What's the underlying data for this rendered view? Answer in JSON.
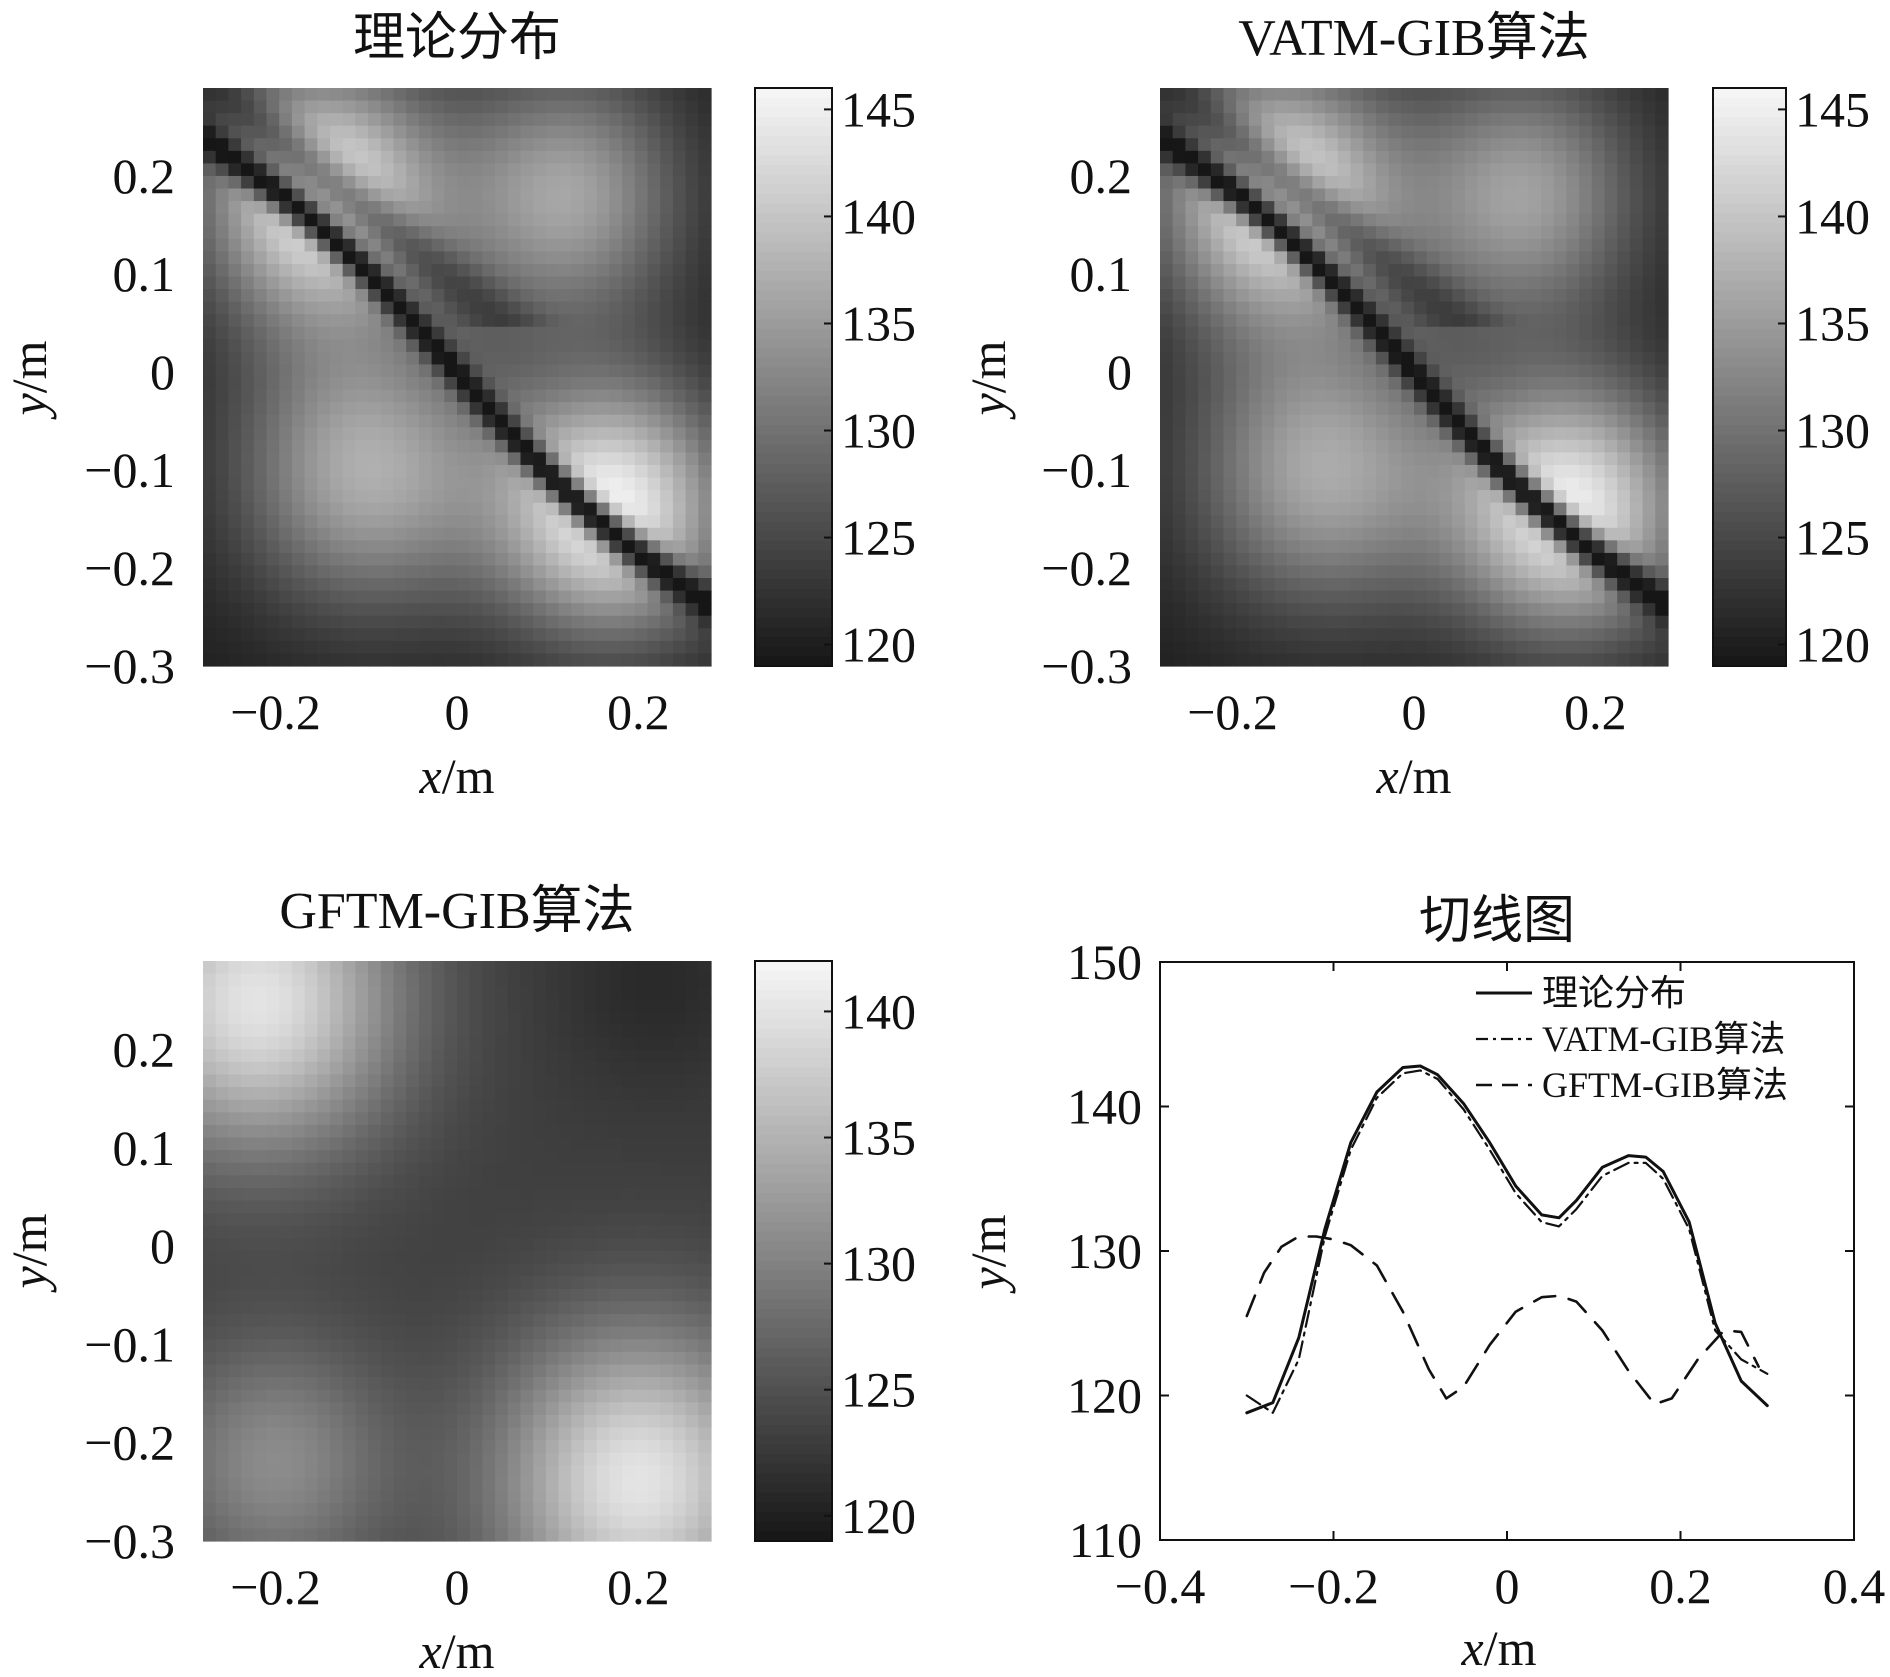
{
  "chart_data": [
    {
      "id": "heat_theory",
      "type": "heatmap",
      "title": "理论分布",
      "xlabel_var": "x",
      "xlabel_unit": "/m",
      "ylabel_var": "y",
      "ylabel_unit": "/m",
      "xlim": [
        -0.28,
        0.28
      ],
      "ylim": [
        -0.3,
        0.29
      ],
      "xticks": [
        -0.2,
        0,
        0.2
      ],
      "xtick_labels": [
        "−0.2",
        "0",
        "0.2"
      ],
      "yticks": [
        0.2,
        0.1,
        0,
        -0.1,
        -0.2,
        -0.3
      ],
      "ytick_labels": [
        "0.2",
        "0.1",
        "0",
        "−0.1",
        "−0.2",
        "−0.3"
      ],
      "colorbar": {
        "range": [
          119,
          146
        ],
        "ticks": [
          145,
          140,
          135,
          130,
          125,
          120
        ],
        "tick_labels": [
          "145",
          "140",
          "135",
          "130",
          "125",
          "120"
        ]
      },
      "field": {
        "peaks": [
          [
            -0.15,
            0.18,
            145.5,
            0.09
          ],
          [
            0.17,
            -0.14,
            145.5,
            0.09
          ],
          [
            0.12,
            0.18,
            136,
            0.09
          ],
          [
            -0.1,
            -0.1,
            137,
            0.1
          ]
        ],
        "nodal": 0.035,
        "base": 120
      }
    },
    {
      "id": "heat_vatm",
      "type": "heatmap",
      "title": "VATM-GIB算法",
      "xlabel_var": "x",
      "xlabel_unit": "/m",
      "ylabel_var": "y",
      "ylabel_unit": "/m",
      "xlim": [
        -0.28,
        0.28
      ],
      "ylim": [
        -0.3,
        0.29
      ],
      "xticks": [
        -0.2,
        0,
        0.2
      ],
      "xtick_labels": [
        "−0.2",
        "0",
        "0.2"
      ],
      "yticks": [
        0.2,
        0.1,
        0,
        -0.1,
        -0.2,
        -0.3
      ],
      "ytick_labels": [
        "0.2",
        "0.1",
        "0",
        "−0.1",
        "−0.2",
        "−0.3"
      ],
      "colorbar": {
        "range": [
          119,
          146
        ],
        "ticks": [
          145,
          140,
          135,
          130,
          125,
          120
        ],
        "tick_labels": [
          "145",
          "140",
          "135",
          "130",
          "125",
          "120"
        ]
      },
      "field": {
        "peaks": [
          [
            -0.15,
            0.18,
            145,
            0.09
          ],
          [
            0.17,
            -0.14,
            145,
            0.09
          ],
          [
            0.12,
            0.18,
            135.5,
            0.09
          ],
          [
            -0.1,
            -0.1,
            136.5,
            0.1
          ]
        ],
        "nodal": 0.035,
        "base": 120
      }
    },
    {
      "id": "heat_gftm",
      "type": "heatmap",
      "title": "GFTM-GIB算法",
      "xlabel_var": "x",
      "xlabel_unit": "/m",
      "ylabel_var": "y",
      "ylabel_unit": "/m",
      "xlim": [
        -0.28,
        0.28
      ],
      "ylim": [
        -0.3,
        0.29
      ],
      "xticks": [
        -0.2,
        0,
        0.2
      ],
      "xtick_labels": [
        "−0.2",
        "0",
        "0.2"
      ],
      "yticks": [
        0.2,
        0.1,
        0,
        -0.1,
        -0.2,
        -0.3
      ],
      "ytick_labels": [
        "0.2",
        "0.1",
        "0",
        "−0.1",
        "−0.2",
        "−0.3"
      ],
      "colorbar": {
        "range": [
          119,
          142
        ],
        "ticks": [
          140,
          135,
          130,
          125,
          120
        ],
        "tick_labels": [
          "140",
          "135",
          "130",
          "125",
          "120"
        ]
      },
      "field": {
        "peaks": [
          [
            -0.22,
            0.25,
            140,
            0.11
          ],
          [
            0.2,
            -0.24,
            140,
            0.11
          ],
          [
            -0.2,
            -0.22,
            131,
            0.09
          ],
          [
            0.22,
            0.27,
            121,
            0.08
          ]
        ],
        "base": 123,
        "mode": "smooth"
      }
    },
    {
      "id": "line_cut",
      "type": "line",
      "title": "切线图",
      "xlabel_var": "x",
      "xlabel_unit": "/m",
      "ylabel_var": "y",
      "ylabel_unit": "/m",
      "xlim": [
        -0.4,
        0.4
      ],
      "ylim": [
        110,
        150
      ],
      "xticks": [
        -0.4,
        -0.2,
        0,
        0.2,
        0.4
      ],
      "xtick_labels": [
        "−0.4",
        "−0.2",
        "0",
        "0.2",
        "0.4"
      ],
      "yticks": [
        150,
        140,
        130,
        120,
        110
      ],
      "ytick_labels": [
        "150",
        "140",
        "130",
        "120",
        "110"
      ],
      "legend_position": "top-right",
      "series": [
        {
          "name": "理论分布",
          "style": "solid",
          "x": [
            -0.3,
            -0.27,
            -0.24,
            -0.21,
            -0.18,
            -0.15,
            -0.12,
            -0.1,
            -0.08,
            -0.05,
            -0.02,
            0.01,
            0.04,
            0.06,
            0.08,
            0.11,
            0.14,
            0.16,
            0.18,
            0.21,
            0.24,
            0.27,
            0.3
          ],
          "y": [
            118.8,
            119.5,
            124,
            131.5,
            137.5,
            141,
            142.7,
            142.8,
            142.2,
            140.2,
            137.5,
            134.5,
            132.5,
            132.3,
            133.5,
            135.8,
            136.6,
            136.5,
            135.5,
            132,
            125,
            121,
            119.3
          ]
        },
        {
          "name": "VATM-GIB算法",
          "style": "dashdot",
          "x": [
            -0.3,
            -0.27,
            -0.24,
            -0.21,
            -0.18,
            -0.15,
            -0.12,
            -0.1,
            -0.08,
            -0.05,
            -0.02,
            0.01,
            0.04,
            0.06,
            0.08,
            0.11,
            0.14,
            0.16,
            0.18,
            0.21,
            0.24,
            0.27,
            0.3
          ],
          "y": [
            120,
            118.8,
            122.5,
            131,
            137,
            140.6,
            142.3,
            142.5,
            141.9,
            139.8,
            137,
            134,
            132,
            131.7,
            132.9,
            135.2,
            136.1,
            136.1,
            135,
            131.5,
            124.5,
            122.5,
            121.5
          ]
        },
        {
          "name": "GFTM-GIB算法",
          "style": "dashed",
          "x": [
            -0.3,
            -0.28,
            -0.26,
            -0.24,
            -0.22,
            -0.2,
            -0.18,
            -0.15,
            -0.12,
            -0.09,
            -0.07,
            -0.05,
            -0.02,
            0.01,
            0.04,
            0.06,
            0.08,
            0.11,
            0.14,
            0.17,
            0.19,
            0.22,
            0.25,
            0.27,
            0.29
          ],
          "y": [
            125.5,
            128.5,
            130.3,
            131,
            131,
            130.8,
            130.4,
            129,
            125.8,
            121.8,
            119.8,
            120.6,
            123.5,
            125.8,
            126.8,
            126.9,
            126.5,
            124.5,
            121.7,
            119.4,
            119.8,
            122.5,
            124.5,
            124.4,
            122
          ]
        }
      ]
    }
  ]
}
